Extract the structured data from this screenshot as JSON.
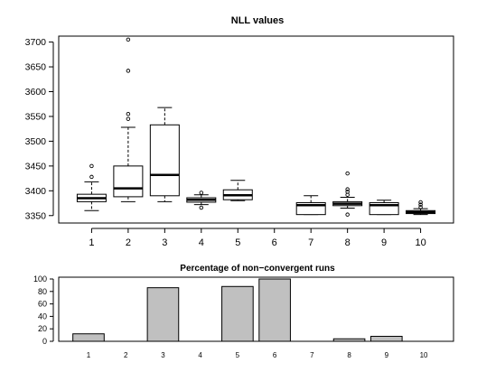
{
  "chart_data": [
    {
      "type": "box",
      "title": "NLL values",
      "categories": [
        "1",
        "2",
        "3",
        "4",
        "5",
        "6",
        "7",
        "8",
        "9",
        "10"
      ],
      "ylim": [
        3335,
        3712
      ],
      "yticks": [
        3350,
        3400,
        3450,
        3500,
        3550,
        3600,
        3650,
        3700
      ],
      "boxes": [
        {
          "category": "1",
          "whisker_low": 3360,
          "q1": 3378,
          "median": 3385,
          "q3": 3393,
          "whisker_high": 3418,
          "outliers": [
            3428,
            3450
          ]
        },
        {
          "category": "2",
          "whisker_low": 3378,
          "q1": 3388,
          "median": 3405,
          "q3": 3450,
          "whisker_high": 3528,
          "outliers": [
            3545,
            3555,
            3642,
            3705
          ]
        },
        {
          "category": "3",
          "whisker_low": 3378,
          "q1": 3390,
          "median": 3432,
          "q3": 3533,
          "whisker_high": 3568,
          "outliers": []
        },
        {
          "category": "4",
          "whisker_low": 3372,
          "q1": 3377,
          "median": 3382,
          "q3": 3386,
          "whisker_high": 3392,
          "outliers": [
            3366,
            3396
          ]
        },
        {
          "category": "5",
          "whisker_low": 3380,
          "q1": 3382,
          "median": 3391,
          "q3": 3402,
          "whisker_high": 3421,
          "outliers": []
        },
        {
          "category": "6",
          "whisker_low": null,
          "q1": null,
          "median": null,
          "q3": null,
          "whisker_high": null,
          "outliers": []
        },
        {
          "category": "7",
          "whisker_low": 3352,
          "q1": 3352,
          "median": 3371,
          "q3": 3376,
          "whisker_high": 3390,
          "outliers": []
        },
        {
          "category": "8",
          "whisker_low": 3365,
          "q1": 3370,
          "median": 3374,
          "q3": 3378,
          "whisker_high": 3387,
          "outliers": [
            3352,
            3392,
            3398,
            3403,
            3435
          ]
        },
        {
          "category": "9",
          "whisker_low": 3352,
          "q1": 3352,
          "median": 3371,
          "q3": 3376,
          "whisker_high": 3381,
          "outliers": []
        },
        {
          "category": "10",
          "whisker_low": 3352,
          "q1": 3354,
          "median": 3357,
          "q3": 3360,
          "whisker_high": 3364,
          "outliers": [
            3367,
            3372,
            3377
          ]
        }
      ],
      "grid": false
    },
    {
      "type": "bar",
      "title": "Percentage of non−convergent runs",
      "categories": [
        "1",
        "2",
        "3",
        "4",
        "5",
        "6",
        "7",
        "8",
        "9",
        "10"
      ],
      "values": [
        12,
        0,
        86,
        0,
        88,
        100,
        0,
        4,
        8,
        0
      ],
      "ylim": [
        0,
        100
      ],
      "yticks": [
        0,
        20,
        40,
        60,
        80,
        100
      ],
      "bar_color": "#c0c0c0",
      "grid": false
    }
  ],
  "colors": {
    "stroke": "#000000",
    "bar_fill": "#c0c0c0",
    "box_fill": "#ffffff",
    "background": "#ffffff"
  }
}
